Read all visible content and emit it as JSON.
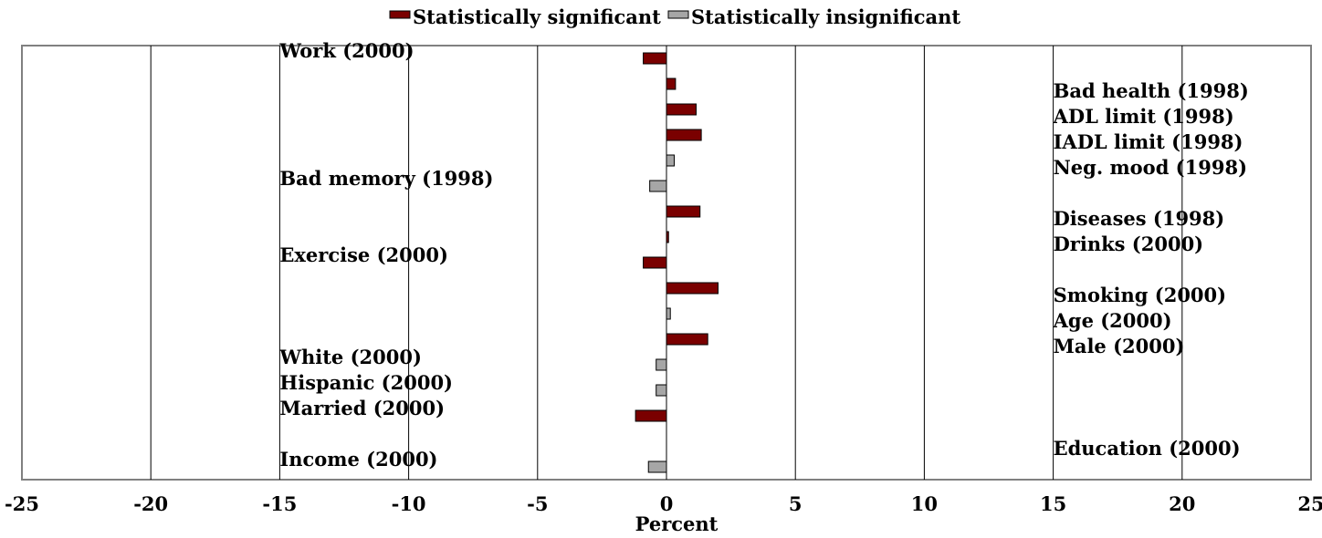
{
  "chart_data": {
    "type": "bar",
    "orientation": "horizontal",
    "xlabel": "Percent",
    "xlim": [
      -25,
      25
    ],
    "x_ticks": [
      -25,
      -20,
      -15,
      -10,
      -5,
      0,
      5,
      10,
      15,
      20,
      25
    ],
    "grid": true,
    "legend_position": "top-center",
    "legend": [
      {
        "name": "Statistically significant",
        "color": "#7a0000"
      },
      {
        "name": "Statistically insignificant",
        "color": "#a6a6a6"
      }
    ],
    "categories": [
      {
        "label": "Work (2000)",
        "label_side": "left",
        "value": -0.9,
        "significant": true
      },
      {
        "label": "Bad health (1998)",
        "label_side": "right",
        "value": 0.35,
        "significant": true
      },
      {
        "label": "ADL limit (1998)",
        "label_side": "right",
        "value": 1.15,
        "significant": true
      },
      {
        "label": "IADL limit (1998)",
        "label_side": "right",
        "value": 1.35,
        "significant": true
      },
      {
        "label": "Neg. mood (1998)",
        "label_side": "right",
        "value": 0.3,
        "significant": false
      },
      {
        "label": "Bad memory (1998)",
        "label_side": "left",
        "value": -0.65,
        "significant": false
      },
      {
        "label": "Diseases (1998)",
        "label_side": "right",
        "value": 1.3,
        "significant": true
      },
      {
        "label": "Drinks (2000)",
        "label_side": "right",
        "value": 0.08,
        "significant": true
      },
      {
        "label": "Exercise (2000)",
        "label_side": "left",
        "value": -0.9,
        "significant": true
      },
      {
        "label": "Smoking (2000)",
        "label_side": "right",
        "value": 2.0,
        "significant": true
      },
      {
        "label": "Age (2000)",
        "label_side": "right",
        "value": 0.15,
        "significant": false
      },
      {
        "label": "Male (2000)",
        "label_side": "right",
        "value": 1.6,
        "significant": true
      },
      {
        "label": "White (2000)",
        "label_side": "left",
        "value": -0.4,
        "significant": false
      },
      {
        "label": "Hispanic (2000)",
        "label_side": "left",
        "value": -0.4,
        "significant": false
      },
      {
        "label": "Married (2000)",
        "label_side": "left",
        "value": -1.2,
        "significant": true
      },
      {
        "label": "Education (2000)",
        "label_side": "right",
        "value": 0,
        "significant": true
      },
      {
        "label": "Income (2000)",
        "label_side": "left",
        "value": -0.7,
        "significant": false
      }
    ]
  }
}
